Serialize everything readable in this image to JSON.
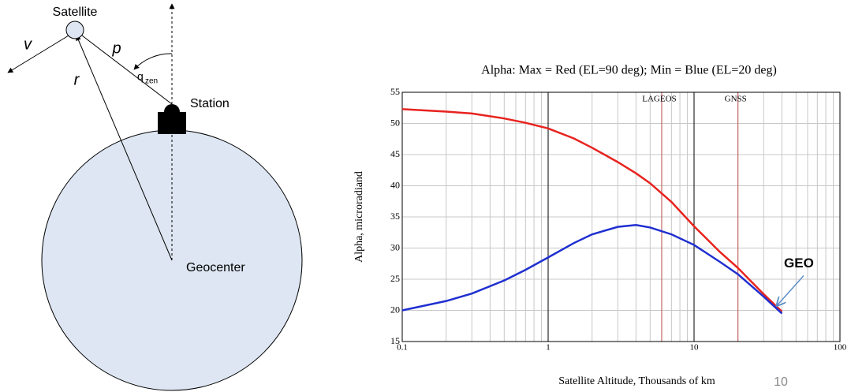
{
  "diagram": {
    "satellite": "Satellite",
    "v": "v",
    "p": "p",
    "r": "r",
    "angle": "q",
    "angle_sub": "zen",
    "station": "Station",
    "geocenter": "Geocenter"
  },
  "chart_data": {
    "type": "line",
    "title": "Alpha: Max = Red (EL=90 deg); Min = Blue (EL=20 deg)",
    "x_label": "Satellite Altitude, Thousands of km",
    "y_label": "Alpha, microradiand",
    "x_scale": "log",
    "xlim": [
      0.1,
      100
    ],
    "ylim": [
      15,
      55
    ],
    "xticks": [
      0.1,
      1,
      10,
      100
    ],
    "yticks": [
      15,
      20,
      25,
      30,
      35,
      40,
      45,
      50,
      55
    ],
    "grid": true,
    "x": [
      0.1,
      0.2,
      0.3,
      0.5,
      0.7,
      1,
      1.5,
      2,
      3,
      4,
      5,
      7,
      10,
      15,
      20,
      30,
      40
    ],
    "series": [
      {
        "color": "#e8231f",
        "values": [
          52.3,
          51.9,
          51.6,
          50.8,
          50.1,
          49.2,
          47.6,
          46.1,
          43.8,
          42.0,
          40.4,
          37.4,
          33.5,
          29.4,
          26.8,
          22.6,
          19.8
        ]
      },
      {
        "color": "#1f2fd0",
        "values": [
          20,
          21.5,
          22.7,
          24.8,
          26.5,
          28.5,
          30.8,
          32.2,
          33.4,
          33.7,
          33.3,
          32.2,
          30.5,
          27.8,
          25.8,
          22.2,
          19.5
        ]
      }
    ],
    "markers": [
      {
        "label": "LAGEOS",
        "x": 6,
        "color": "#c0504d"
      },
      {
        "label": "GNSS",
        "x": 20,
        "color": "#c0504d"
      }
    ],
    "annotations": [
      {
        "text": "GEO",
        "x": 36,
        "y": 20.5,
        "color": "#5b8ec7"
      }
    ]
  },
  "page_number": "10"
}
